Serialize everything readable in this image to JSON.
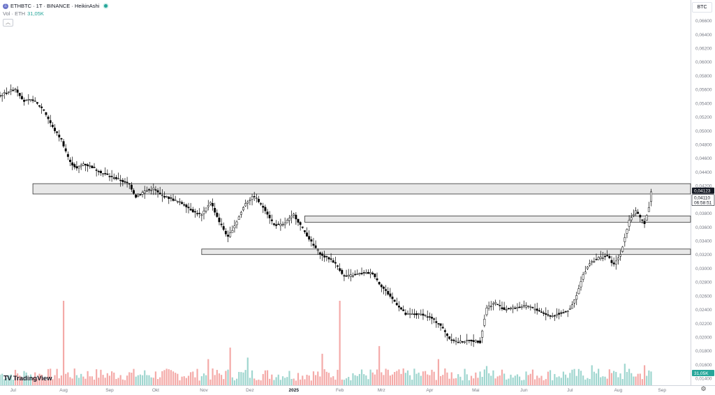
{
  "legend": {
    "symbol_icon": "ethereum-symbol-icon",
    "title": "ETHBTC · 1T · BINANCE · HeikinAshi",
    "volume_label": "Vol · ETH",
    "volume_value": "31,05K"
  },
  "currency_button": "BTC",
  "price_labels": {
    "last": "0,04123",
    "current": "0,04110",
    "countdown": "06:58:51",
    "volume": "31,05K"
  },
  "colors": {
    "up": "#26a69a",
    "down": "#ef5350",
    "candle": "#000000",
    "zone_fill": "#e8e8e8",
    "zone_border": "#333333",
    "grid": "#f0f3fa"
  },
  "logo_text": "TradingView",
  "chart_data": {
    "type": "candlestick",
    "style": "HeikinAshi",
    "symbol": "ETHBTC",
    "interval": "1T",
    "exchange": "BINANCE",
    "ylim": [
      0.013,
      0.069
    ],
    "y_ticks": [
      "0,06800",
      "0,06600",
      "0,06400",
      "0,06200",
      "0,06000",
      "0,05800",
      "0,05600",
      "0,05400",
      "0,05200",
      "0,05000",
      "0,04800",
      "0,04600",
      "0,04400",
      "0,04200",
      "0,04000",
      "0,03800",
      "0,03600",
      "0,03400",
      "0,03200",
      "0,03000",
      "0,02800",
      "0,02600",
      "0,02400",
      "0,02200",
      "0,02000",
      "0,01800",
      "0,01600",
      "0,01400"
    ],
    "y_tick_values": [
      0.068,
      0.066,
      0.064,
      0.062,
      0.06,
      0.058,
      0.056,
      0.054,
      0.052,
      0.05,
      0.048,
      0.046,
      0.044,
      0.042,
      0.04,
      0.038,
      0.036,
      0.034,
      0.032,
      0.03,
      0.028,
      0.026,
      0.024,
      0.022,
      0.02,
      0.018,
      0.016,
      0.014
    ],
    "x_ticks": [
      "Jul",
      "Aug",
      "Sep",
      "Okt",
      "Nov",
      "Dez",
      "2025",
      "Feb",
      "Mrz",
      "Apr",
      "Mai",
      "Jun",
      "Jul",
      "Aug",
      "Sep"
    ],
    "x_tick_index": [
      6,
      29,
      50,
      71,
      93,
      114,
      134,
      155,
      174,
      196,
      217,
      239,
      260,
      282,
      302
    ],
    "x_range": [
      0,
      315
    ],
    "price_path": [
      [
        0,
        0.0551
      ],
      [
        3,
        0.0556
      ],
      [
        7,
        0.0561
      ],
      [
        11,
        0.0543
      ],
      [
        15,
        0.0545
      ],
      [
        20,
        0.053
      ],
      [
        24,
        0.0505
      ],
      [
        28,
        0.0487
      ],
      [
        32,
        0.0454
      ],
      [
        35,
        0.0445
      ],
      [
        38,
        0.0452
      ],
      [
        42,
        0.0447
      ],
      [
        47,
        0.0438
      ],
      [
        51,
        0.0433
      ],
      [
        55,
        0.0428
      ],
      [
        59,
        0.0422
      ],
      [
        62,
        0.0404
      ],
      [
        66,
        0.0412
      ],
      [
        70,
        0.0416
      ],
      [
        73,
        0.0407
      ],
      [
        78,
        0.0401
      ],
      [
        84,
        0.0393
      ],
      [
        88,
        0.0383
      ],
      [
        92,
        0.0377
      ],
      [
        96,
        0.0397
      ],
      [
        100,
        0.0368
      ],
      [
        104,
        0.0345
      ],
      [
        108,
        0.0368
      ],
      [
        112,
        0.0395
      ],
      [
        116,
        0.0405
      ],
      [
        121,
        0.0385
      ],
      [
        125,
        0.0363
      ],
      [
        129,
        0.0363
      ],
      [
        134,
        0.0378
      ],
      [
        139,
        0.0353
      ],
      [
        143,
        0.0333
      ],
      [
        147,
        0.0318
      ],
      [
        151,
        0.0313
      ],
      [
        154,
        0.0303
      ],
      [
        157,
        0.0288
      ],
      [
        161,
        0.029
      ],
      [
        166,
        0.0293
      ],
      [
        170,
        0.0293
      ],
      [
        173,
        0.0278
      ],
      [
        177,
        0.0263
      ],
      [
        181,
        0.0248
      ],
      [
        185,
        0.0233
      ],
      [
        188,
        0.0233
      ],
      [
        193,
        0.0233
      ],
      [
        197,
        0.0227
      ],
      [
        201,
        0.0217
      ],
      [
        205,
        0.0198
      ],
      [
        209,
        0.0193
      ],
      [
        215,
        0.0195
      ],
      [
        219,
        0.0193
      ],
      [
        222,
        0.0243
      ],
      [
        226,
        0.025
      ],
      [
        230,
        0.024
      ],
      [
        235,
        0.0243
      ],
      [
        241,
        0.0245
      ],
      [
        246,
        0.0238
      ],
      [
        251,
        0.023
      ],
      [
        256,
        0.0235
      ],
      [
        260,
        0.024
      ],
      [
        263,
        0.026
      ],
      [
        266,
        0.029
      ],
      [
        269,
        0.0308
      ],
      [
        273,
        0.0315
      ],
      [
        277,
        0.0318
      ],
      [
        280,
        0.0305
      ],
      [
        283,
        0.032
      ],
      [
        285,
        0.0345
      ],
      [
        287,
        0.037
      ],
      [
        290,
        0.0383
      ],
      [
        292,
        0.0373
      ],
      [
        294,
        0.0366
      ],
      [
        296,
        0.0388
      ],
      [
        297,
        0.0412
      ]
    ],
    "volume_ylim": [
      0,
      120000
    ],
    "volume_bars": [
      {
        "i": 29,
        "v": 110000,
        "dir": "down"
      },
      {
        "i": 155,
        "v": 110000,
        "dir": "down"
      },
      {
        "i": 105,
        "v": 49000,
        "dir": "down"
      },
      {
        "i": 173,
        "v": 51000,
        "dir": "down"
      },
      {
        "i": 147,
        "v": 41000,
        "dir": "down"
      },
      {
        "i": 113,
        "v": 36000,
        "dir": "up"
      },
      {
        "i": 95,
        "v": 34000,
        "dir": "down"
      },
      {
        "i": 200,
        "v": 34000,
        "dir": "down"
      },
      {
        "i": 222,
        "v": 25000,
        "dir": "up"
      },
      {
        "i": 270,
        "v": 26000,
        "dir": "up"
      },
      {
        "i": 285,
        "v": 28000,
        "dir": "up"
      },
      {
        "i": 294,
        "v": 26000,
        "dir": "down"
      }
    ],
    "zones": [
      {
        "i0": 15,
        "i1": 315,
        "y0": 0.0423,
        "y1": 0.0408
      },
      {
        "i0": 139,
        "i1": 315,
        "y0": 0.0376,
        "y1": 0.0367
      },
      {
        "i0": 92,
        "i1": 315,
        "y0": 0.0328,
        "y1": 0.032
      }
    ]
  }
}
